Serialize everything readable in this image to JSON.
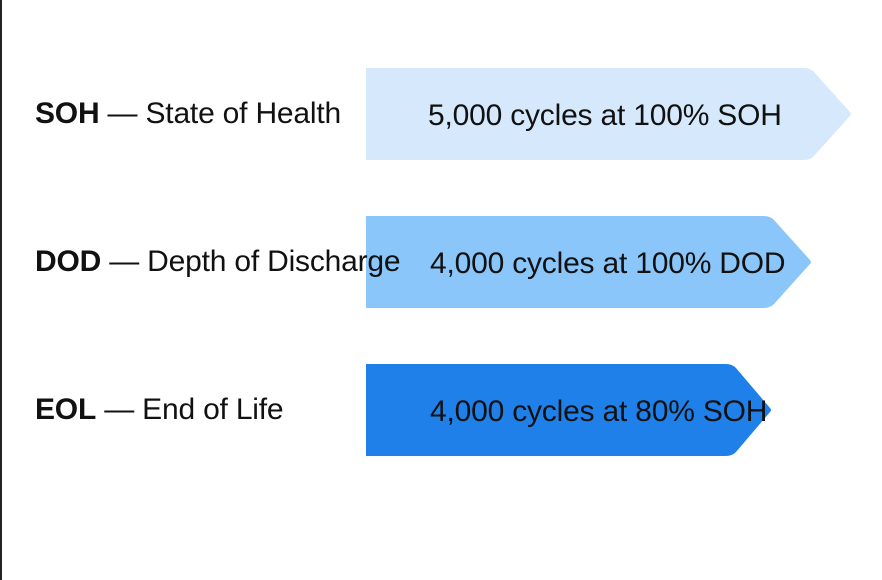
{
  "colors": {
    "arrow_soh": "#d6e9fc",
    "arrow_dod": "#8bc6fa",
    "arrow_eol": "#1f80e9",
    "text": "#111111"
  },
  "rows": [
    {
      "abbr": "SOH",
      "separator": " — ",
      "term": "State of Health",
      "value": "5,000 cycles at 100% SOH"
    },
    {
      "abbr": "DOD",
      "separator": " — ",
      "term": "Depth of Discharge",
      "value": "4,000 cycles at 100% DOD"
    },
    {
      "abbr": "EOL",
      "separator": " — ",
      "term": "End of Life",
      "value": "4,000 cycles at 80% SOH"
    }
  ]
}
